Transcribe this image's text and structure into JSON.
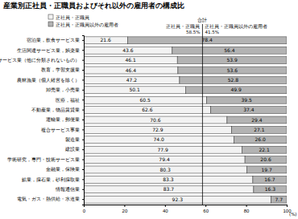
{
  "chart_data": {
    "type": "bar",
    "orientation": "horizontal",
    "stacked": true,
    "data_labels": true,
    "grid": false,
    "legend": "top-left",
    "title": "産業別正社員・正職員およびそれ以外の雇用者の構成比",
    "x_label": "(%)",
    "categories": [
      "宿泊業，飲食サービス業",
      "生活関連サービス業，娯楽業",
      "サービス業（他に分類されないもの）",
      "教育，学習支援業",
      "農林漁業（個人経営を除く）",
      "卸売業，小売業",
      "医療，福祉",
      "不動産業，物品賃貸業",
      "運輸業，郵便業",
      "複合サービス事業",
      "製造業",
      "建設業",
      "学術研究，専門・技術サービス業",
      "金融業，保険業",
      "鉱業，採石業，砂利採取業",
      "情報通信業",
      "電気・ガス・熱供給・水道業"
    ],
    "series": [
      {
        "name": "正社員・正職員",
        "color": "#f2f2f2",
        "values": [
          21.6,
          43.6,
          46.1,
          46.4,
          47.2,
          50.1,
          60.5,
          62.6,
          70.6,
          72.9,
          74.0,
          77.9,
          79.4,
          80.3,
          83.3,
          83.7,
          92.3
        ]
      },
      {
        "name": "正社員・正職員以外の雇用者",
        "color": "#b3b3b3",
        "values": [
          78.4,
          56.4,
          53.9,
          53.6,
          52.8,
          49.9,
          39.5,
          37.4,
          29.4,
          27.1,
          26.0,
          22.1,
          20.6,
          19.7,
          16.7,
          16.3,
          7.7
        ]
      }
    ],
    "total": {
      "label": "合計",
      "items": [
        {
          "name": "正社員・正職員",
          "value": 58.5,
          "value_label": "58.5%"
        },
        {
          "name": "正社員・正職員以外の雇用者",
          "value": 41.5,
          "value_label": "41.5%"
        }
      ]
    },
    "xlim": [
      0,
      100
    ],
    "xticks": [
      0,
      20,
      40,
      60,
      80,
      100
    ]
  }
}
